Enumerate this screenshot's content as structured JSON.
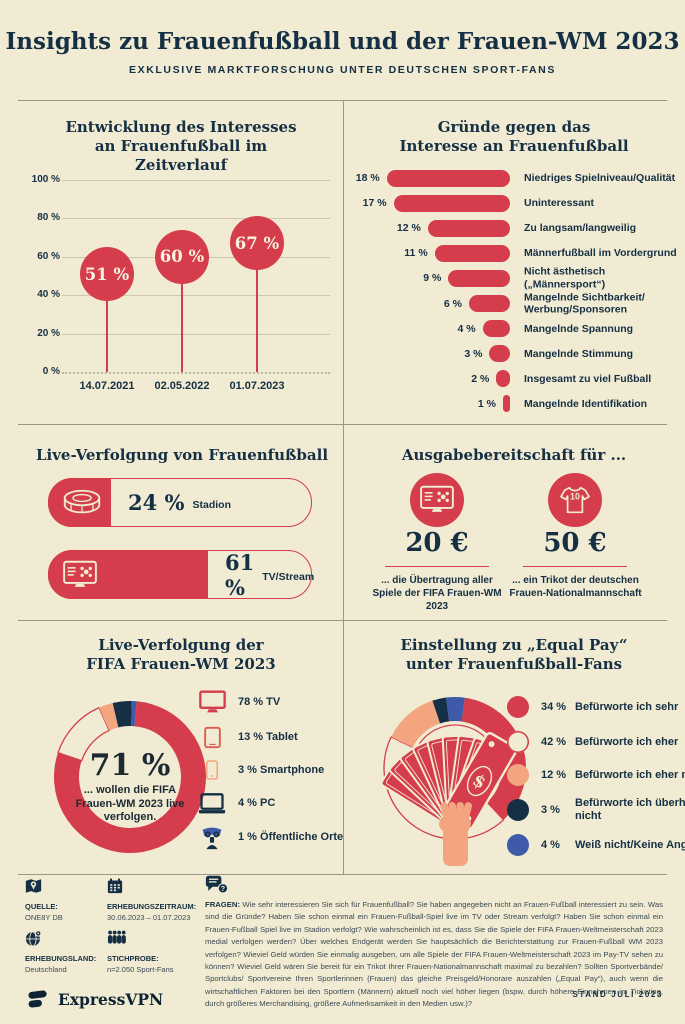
{
  "header": {
    "title": "Insights zu Frauenfußball und der Frauen-WM 2023",
    "subtitle": "EXKLUSIVE MARKTFORSCHUNG UNTER DEUTSCHEN SPORT-FANS"
  },
  "colors": {
    "red": "#d53c4c",
    "navy": "#152f44",
    "peach": "#f2a57f",
    "blue": "#3e5aa9",
    "cream": "#f0ebd2"
  },
  "chart_data": [
    {
      "id": "interest_over_time",
      "type": "line",
      "title": "Entwicklung des Interesses an Frauenfußball im Zeitverlauf",
      "categories": [
        "14.07.2021",
        "02.05.2022",
        "01.07.2023"
      ],
      "values": [
        51,
        60,
        67
      ],
      "value_labels": [
        "51 %",
        "60 %",
        "67 %"
      ],
      "yticks": [
        "100 %",
        "80 %",
        "60 %",
        "40 %",
        "20 %",
        "0 %"
      ],
      "ylim": [
        0,
        100
      ],
      "grid": true
    },
    {
      "id": "reasons_against",
      "type": "bar",
      "title": "Gründe gegen das Interesse an Frauenfußball",
      "categories": [
        "Niedriges Spielniveau/Qualität",
        "Uninteressant",
        "Zu langsam/langweilig",
        "Männerfußball im Vordergrund",
        "Nicht ästhetisch („Männersport“)",
        "Mangelnde Sichtbarkeit/ Werbung/Sponsoren",
        "Mangelnde Spannung",
        "Mangelnde Stimmung",
        "Insgesamt zu viel Fußball",
        "Mangelnde Identifikation"
      ],
      "values": [
        18,
        17,
        12,
        11,
        9,
        6,
        4,
        3,
        2,
        1
      ],
      "value_labels": [
        "18 %",
        "17 %",
        "12 %",
        "11 %",
        "9 %",
        "6 %",
        "4 %",
        "3 %",
        "2 %",
        "1 %"
      ]
    },
    {
      "id": "live_following",
      "type": "bar",
      "title": "Live-Verfolgung von Frauenfußball",
      "categories": [
        "Stadion",
        "TV/Stream"
      ],
      "values": [
        24,
        61
      ],
      "value_labels": [
        "24 %",
        "61 %"
      ],
      "icons": [
        "stadium-icon",
        "tv-icon"
      ]
    },
    {
      "id": "spending",
      "type": "table",
      "title": "Ausgabebereitschaft für ...",
      "items": [
        {
          "amount": "20 €",
          "caption": "... die Übertragung aller Spiele der FIFA Frauen-WM 2023",
          "icon": "tv-icon"
        },
        {
          "amount": "50 €",
          "caption": "... ein Trikot der deutschen Frauen-Nationalmannschaft",
          "icon": "jersey-icon"
        }
      ]
    },
    {
      "id": "wm_following",
      "type": "pie",
      "title": "Live-Verfolgung der FIFA Frauen-WM 2023",
      "center_value": "71 %",
      "center_caption": "... wollen die FIFA Frauen-WM 2023 live verfolgen.",
      "categories": [
        "TV",
        "Tablet",
        "Smartphone",
        "PC",
        "Öffentliche Orte"
      ],
      "values": [
        78,
        13,
        3,
        4,
        1
      ],
      "segments": [
        {
          "fill": "#d53c4c"
        },
        {
          "fill": "#f0ebd2",
          "stroke": "#d53c4c"
        },
        {
          "fill": "#f2a57f"
        },
        {
          "fill": "#152f44"
        },
        {
          "fill": "#3e5aa9"
        }
      ],
      "legend": [
        {
          "label": "78 % TV",
          "icon": "tv-icon",
          "color": "#d53c4c"
        },
        {
          "label": "13 % Tablet",
          "icon": "tablet-icon",
          "color": "#dd5a4e"
        },
        {
          "label": "3 % Smartphone",
          "icon": "smartphone-icon",
          "color": "#f2a57f"
        },
        {
          "label": "4 % PC",
          "icon": "laptop-icon",
          "color": "#152f44"
        },
        {
          "label": "1 % Öffentliche Orte",
          "icon": "public-viewing-icon",
          "color": "#3e5aa9"
        }
      ]
    },
    {
      "id": "equal_pay",
      "type": "pie",
      "title": "Einstellung zu „Equal Pay“ unter Frauenfußball-Fans",
      "categories": [
        "Befürworte ich sehr",
        "Befürworte ich eher",
        "Befürworte ich eher nicht",
        "Befürworte ich überhaupt nicht",
        "Weiß nicht/Keine Angabe"
      ],
      "values": [
        34,
        42,
        12,
        3,
        4
      ],
      "segments": [
        {
          "fill": "#d53c4c"
        },
        {
          "fill": "#f0ebd2",
          "stroke": "#d53c4c"
        },
        {
          "fill": "#f2a57f"
        },
        {
          "fill": "#152f44"
        },
        {
          "fill": "#3e5aa9"
        }
      ],
      "legend": [
        {
          "pct": "34 %",
          "text": "Befürworte ich sehr",
          "swatch": {
            "fill": "#d53c4c"
          }
        },
        {
          "pct": "42 %",
          "text": "Befürworte ich eher",
          "swatch": {
            "fill": "#f0ebd2",
            "stroke": "#d53c4c"
          }
        },
        {
          "pct": "12 %",
          "text": "Befürworte ich eher nicht",
          "swatch": {
            "fill": "#f2a57f"
          }
        },
        {
          "pct": "3 %",
          "text": "Befürworte ich überhaupt nicht",
          "swatch": {
            "fill": "#152f44"
          }
        },
        {
          "pct": "4 %",
          "text": "Weiß nicht/Keine Angabe",
          "swatch": {
            "fill": "#3e5aa9"
          }
        }
      ]
    }
  ],
  "footer": {
    "meta": [
      {
        "label": "QUELLE:",
        "value": "ONE8Y DB",
        "icon": "map-icon"
      },
      {
        "label": "ERHEBUNGSZEITRAUM:",
        "value": "30.06.2023 – 01.07.2023",
        "icon": "calendar-icon"
      },
      {
        "label": "ERHEBUNGSLAND:",
        "value": "Deutschland",
        "icon": "globe-icon"
      },
      {
        "label": "STICHPROBE:",
        "value": "n=2.050 Sport-Fans",
        "icon": "people-icon"
      }
    ],
    "logo_text": "ExpressVPN",
    "questions_label": "FRAGEN:",
    "questions_text": "Wie sehr interessieren Sie sich für Frauenfußball? Sie haben angegeben nicht an Frauen-Fußball interessiert zu sein. Was sind die Gründe? Haben Sie schon einmal ein Frauen-Fußball-Spiel live im TV oder Stream verfolgt? Haben Sie schon einmal ein Frauen-Fußball Spiel live im Stadion verfolgt? Wie wahrscheinlich ist es, dass Sie die Spiele der FIFA Frauen-Weltmeisterschaft 2023 medial verfolgen werden? Über welches Endgerät werden Sie hauptsächlich die Berichterstattung zur Frauen-Fußball WM 2023 verfolgen? Wieviel Geld würden Sie einmalig ausgeben, um alle Spiele der FIFA Frauen-Weltmeisterschaft 2023 im Pay-TV sehen zu können? Wieviel Geld wären Sie bereit für ein Trikot Ihrer Frauen-Nationalmannschaft maximal zu bezahlen? Sollten Sportverbände/ Sportclubs/ Sportvereine Ihren Sportlerinnen (Frauen) das gleiche Preisgeld/Honorare auszahlen („Equal Pay“), auch wenn die wirtschaftlichen Faktoren bei den Sportlern (Männern) aktuell noch viel höher liegen (bspw. durch höhere Einnahmen im Ticketing, durch größeres Merchandising, größere Aufmerksamkeit in den Medien usw.)?",
    "stand": "STAND JULI 2023"
  }
}
